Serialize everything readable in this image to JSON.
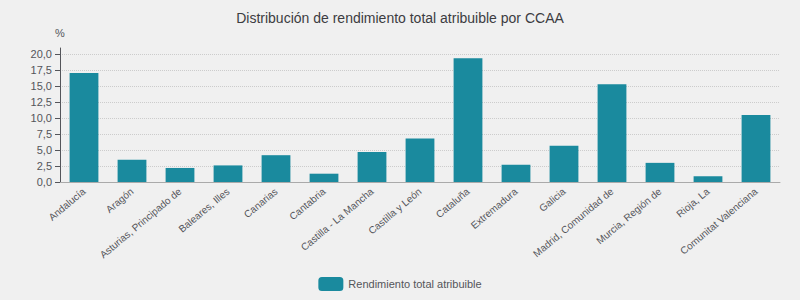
{
  "chart_data": {
    "type": "bar",
    "title": "Distribución de rendimiento total atribuible por CCAA",
    "categories": [
      "Andalucía",
      "Aragón",
      "Asturias, Principado de",
      "Baleares, Illes",
      "Canarias",
      "Cantabria",
      "Castilla - La Mancha",
      "Castilla y León",
      "Cataluña",
      "Extremadura",
      "Galicia",
      "Madrid, Comunidad de",
      "Murcia, Región de",
      "Rioja, La",
      "Comunitat Valenciana"
    ],
    "series": [
      {
        "name": "Rendimiento total atribuible",
        "color": "#1a8a9e",
        "values": [
          17.1,
          3.5,
          2.2,
          2.6,
          4.2,
          1.3,
          4.7,
          6.8,
          19.4,
          2.7,
          5.7,
          15.3,
          3.0,
          0.9,
          10.5
        ]
      }
    ],
    "ylabel": "%",
    "ylim": [
      0,
      21.0
    ],
    "yticks": [
      {
        "value": 0.0,
        "label": "0,0"
      },
      {
        "value": 2.5,
        "label": "2,5"
      },
      {
        "value": 5.0,
        "label": "5,0"
      },
      {
        "value": 7.5,
        "label": "7,5"
      },
      {
        "value": 10.0,
        "label": "10,0"
      },
      {
        "value": 12.5,
        "label": "12,5"
      },
      {
        "value": 15.0,
        "label": "15,0"
      },
      {
        "value": 17.5,
        "label": "17,5"
      },
      {
        "value": 20.0,
        "label": "20,0"
      }
    ],
    "grid": true,
    "legend": "bottom"
  }
}
